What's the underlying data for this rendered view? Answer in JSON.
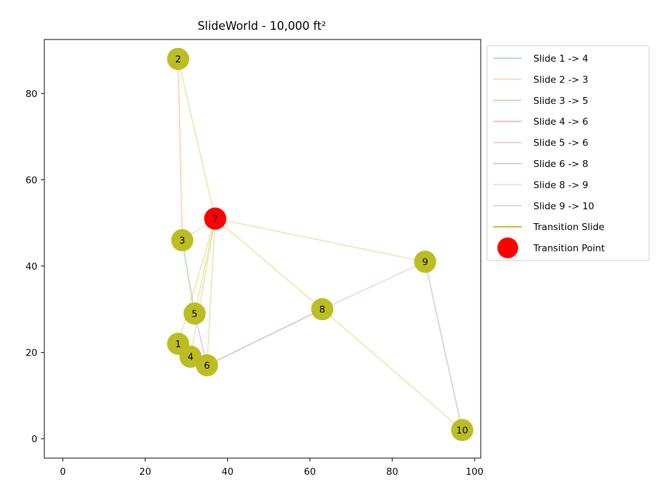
{
  "chart_data": {
    "type": "scatter",
    "title": "SlideWorld - 10,000 ft²",
    "xlabel": "",
    "ylabel": "",
    "xlim": [
      -4.5,
      101.5
    ],
    "ylim": [
      -4.5,
      92.5
    ],
    "x_ticks": [
      0,
      20,
      40,
      60,
      80,
      100
    ],
    "y_ticks": [
      0,
      20,
      40,
      60,
      80
    ],
    "grid": false,
    "legend_position": "outside-upper-right",
    "points": [
      {
        "id": 1,
        "label": "1",
        "x": 28,
        "y": 22
      },
      {
        "id": 2,
        "label": "2",
        "x": 28,
        "y": 88
      },
      {
        "id": 3,
        "label": "3",
        "x": 29,
        "y": 46
      },
      {
        "id": 4,
        "label": "4",
        "x": 31,
        "y": 19
      },
      {
        "id": 5,
        "label": "5",
        "x": 32,
        "y": 29
      },
      {
        "id": 6,
        "label": "6",
        "x": 35,
        "y": 17
      },
      {
        "id": 7,
        "label": "7",
        "x": 37,
        "y": 51
      },
      {
        "id": 8,
        "label": "8",
        "x": 63,
        "y": 30
      },
      {
        "id": 9,
        "label": "9",
        "x": 88,
        "y": 41
      },
      {
        "id": 10,
        "label": "10",
        "x": 97,
        "y": 2
      }
    ],
    "transition_point_id": 7,
    "slides": [
      {
        "name": "Slide 1 -> 4",
        "from": 1,
        "to": 4,
        "color": "#1f77b4"
      },
      {
        "name": "Slide 2 -> 3",
        "from": 2,
        "to": 3,
        "color": "#ff7f0e"
      },
      {
        "name": "Slide 3 -> 5",
        "from": 3,
        "to": 5,
        "color": "#2ca02c"
      },
      {
        "name": "Slide 4 -> 6",
        "from": 4,
        "to": 6,
        "color": "#d62728"
      },
      {
        "name": "Slide 5 -> 6",
        "from": 5,
        "to": 6,
        "color": "#9467bd"
      },
      {
        "name": "Slide 6 -> 8",
        "from": 6,
        "to": 8,
        "color": "#8c564b"
      },
      {
        "name": "Slide 8 -> 9",
        "from": 8,
        "to": 9,
        "color": "#e377c2"
      },
      {
        "name": "Slide 9 -> 10",
        "from": 9,
        "to": 10,
        "color": "#7f7f7f"
      }
    ],
    "transition_slide": {
      "name": "Transition Slide",
      "color": "#bcbd22",
      "edges": [
        [
          7,
          1
        ],
        [
          7,
          2
        ],
        [
          7,
          3
        ],
        [
          7,
          4
        ],
        [
          7,
          5
        ],
        [
          7,
          6
        ],
        [
          7,
          8
        ],
        [
          7,
          9
        ],
        [
          8,
          10
        ],
        [
          4,
          6
        ]
      ]
    },
    "transition_point_legend": {
      "name": "Transition Point",
      "color": "#ff0000"
    },
    "node_color": "#bcbd22"
  }
}
